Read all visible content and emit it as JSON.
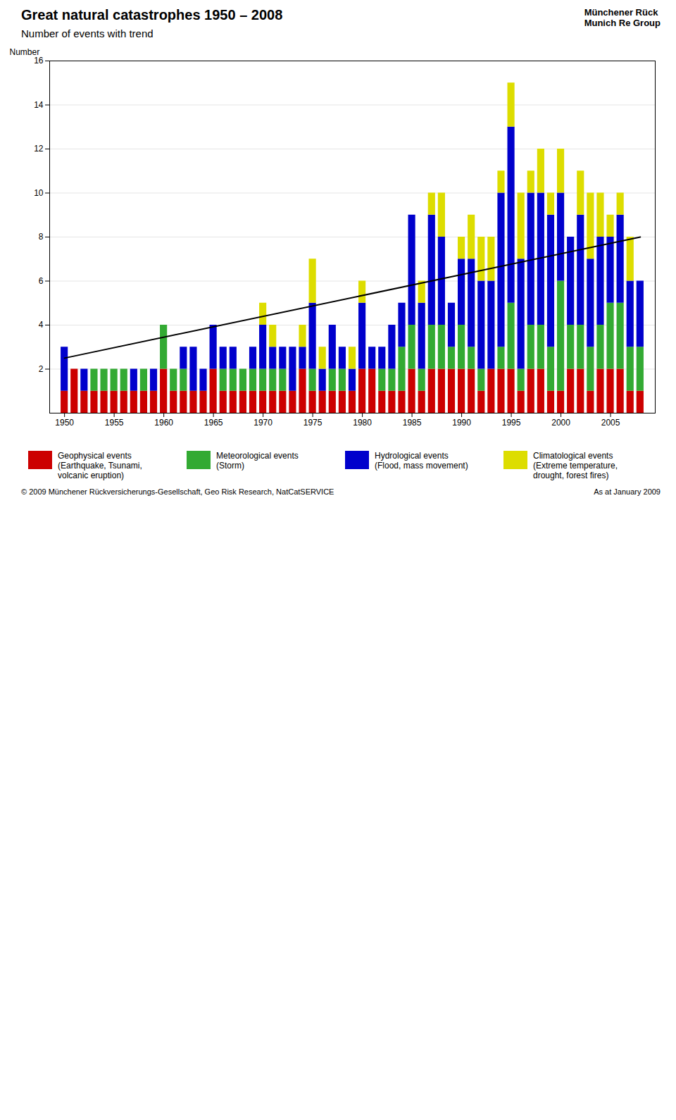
{
  "chart_data": {
    "type": "bar",
    "title": "Great natural catastrophes 1950 – 2008",
    "subtitle": "Number of events with trend",
    "ylabel": "Number",
    "x": [
      1950,
      1951,
      1952,
      1953,
      1954,
      1955,
      1956,
      1957,
      1958,
      1959,
      1960,
      1961,
      1962,
      1963,
      1964,
      1965,
      1966,
      1967,
      1968,
      1969,
      1970,
      1971,
      1972,
      1973,
      1974,
      1975,
      1976,
      1977,
      1978,
      1979,
      1980,
      1981,
      1982,
      1983,
      1984,
      1985,
      1986,
      1987,
      1988,
      1989,
      1990,
      1991,
      1992,
      1993,
      1994,
      1995,
      1996,
      1997,
      1998,
      1999,
      2000,
      2001,
      2002,
      2003,
      2004,
      2005,
      2006,
      2007,
      2008
    ],
    "series": [
      {
        "name": "Geophysical events\n(Earthquake, Tsunami,\nvolcanic eruption)",
        "color": "#cc0000",
        "values": [
          1,
          2,
          1,
          1,
          1,
          1,
          1,
          1,
          1,
          1,
          2,
          1,
          1,
          1,
          1,
          2,
          1,
          1,
          1,
          1,
          1,
          1,
          1,
          1,
          2,
          1,
          1,
          1,
          1,
          1,
          2,
          2,
          1,
          1,
          1,
          2,
          1,
          2,
          2,
          2,
          2,
          2,
          1,
          2,
          2,
          2,
          1,
          2,
          2,
          1,
          1,
          2,
          2,
          1,
          2,
          2,
          2,
          1,
          1
        ]
      },
      {
        "name": "Meteorological events\n(Storm)",
        "color": "#33aa33",
        "values": [
          0,
          0,
          0,
          1,
          1,
          1,
          1,
          0,
          1,
          0,
          2,
          1,
          1,
          0,
          0,
          0,
          1,
          1,
          1,
          1,
          1,
          1,
          1,
          0,
          0,
          1,
          0,
          1,
          1,
          0,
          0,
          0,
          1,
          1,
          2,
          2,
          1,
          2,
          2,
          1,
          2,
          1,
          1,
          0,
          1,
          3,
          1,
          2,
          2,
          2,
          5,
          2,
          2,
          2,
          2,
          3,
          3,
          2,
          2
        ]
      },
      {
        "name": "Hydrological events\n(Flood, mass movement)",
        "color": "#0000cc",
        "values": [
          2,
          0,
          1,
          0,
          0,
          0,
          0,
          1,
          0,
          1,
          0,
          0,
          1,
          2,
          1,
          2,
          1,
          1,
          0,
          1,
          2,
          1,
          1,
          2,
          1,
          3,
          1,
          2,
          1,
          1,
          3,
          1,
          1,
          2,
          2,
          5,
          3,
          5,
          4,
          2,
          3,
          4,
          4,
          4,
          7,
          8,
          5,
          6,
          6,
          6,
          4,
          4,
          5,
          4,
          4,
          3,
          4,
          3,
          3
        ]
      },
      {
        "name": "Climatological events\n(Extreme temperature,\ndrought, forest fires)",
        "color": "#dddd00",
        "values": [
          0,
          0,
          0,
          0,
          0,
          0,
          0,
          0,
          0,
          0,
          0,
          0,
          0,
          0,
          0,
          0,
          0,
          0,
          0,
          0,
          1,
          1,
          0,
          0,
          1,
          2,
          1,
          0,
          0,
          1,
          1,
          0,
          0,
          0,
          0,
          0,
          1,
          1,
          2,
          0,
          1,
          2,
          2,
          2,
          1,
          2,
          3,
          1,
          2,
          1,
          2,
          0,
          2,
          3,
          2,
          1,
          1,
          2,
          0
        ]
      },
      {
        "type": "line",
        "color": "#000000",
        "x": [
          1950,
          2008
        ],
        "values": [
          2.5,
          8.0
        ]
      }
    ],
    "stacked": true,
    "xlim": [
      1948.5,
      2009.5
    ],
    "xticks": [
      1950,
      1955,
      1960,
      1965,
      1970,
      1975,
      1980,
      1985,
      1990,
      1995,
      2000,
      2005
    ],
    "ylim": [
      0,
      16
    ],
    "yticks": [
      2,
      4,
      6,
      8,
      10,
      12,
      14,
      16
    ],
    "grid": true,
    "legend": "bottom",
    "annotations": [
      "Münchener Rück",
      "Munich Re Group",
      "© 2009 Münchener Rückversicherungs-Gesellschaft, Geo Risk Research, NatCatSERVICE",
      "As at January 2009"
    ]
  }
}
